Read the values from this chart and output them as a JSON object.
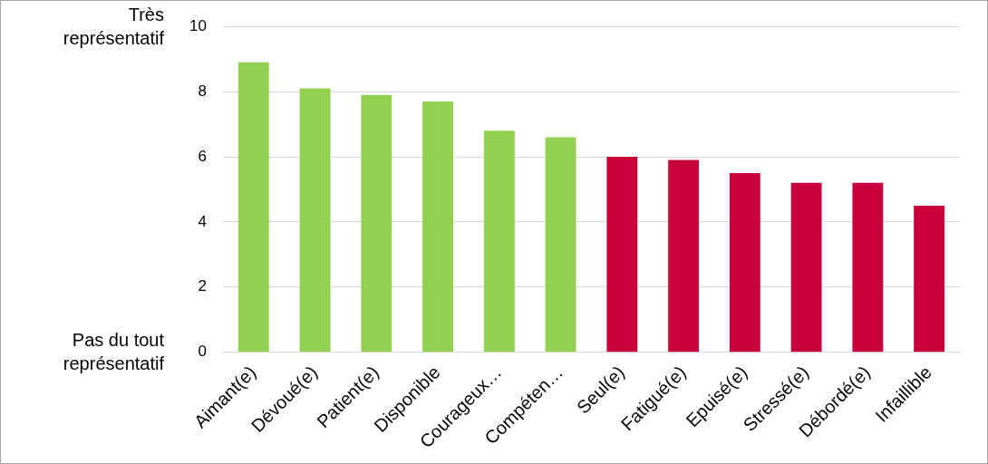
{
  "chart_data": {
    "type": "bar",
    "categories": [
      "Aimant(e)",
      "Dévoué(e)",
      "Patient(e)",
      "Disponible",
      "Courageux…",
      "Compéten…",
      "Seul(e)",
      "Fatigué(e)",
      "Epuisé(e)",
      "Stressé(e)",
      "Débordé(e)",
      "Infaillible"
    ],
    "values": [
      8.9,
      8.1,
      7.9,
      7.7,
      6.8,
      6.6,
      6.0,
      5.9,
      5.5,
      5.2,
      5.2,
      4.5
    ],
    "colors": [
      "#92d050",
      "#92d050",
      "#92d050",
      "#92d050",
      "#92d050",
      "#92d050",
      "#c8003c",
      "#c8003c",
      "#c8003c",
      "#c8003c",
      "#c8003c",
      "#c8003c"
    ],
    "ylim": [
      0,
      10
    ],
    "yticks": [
      0,
      2,
      4,
      6,
      8,
      10
    ],
    "grid": "y",
    "legend": false,
    "annotations": [
      "Très représentatif",
      "Pas du tout représentatif"
    ]
  }
}
